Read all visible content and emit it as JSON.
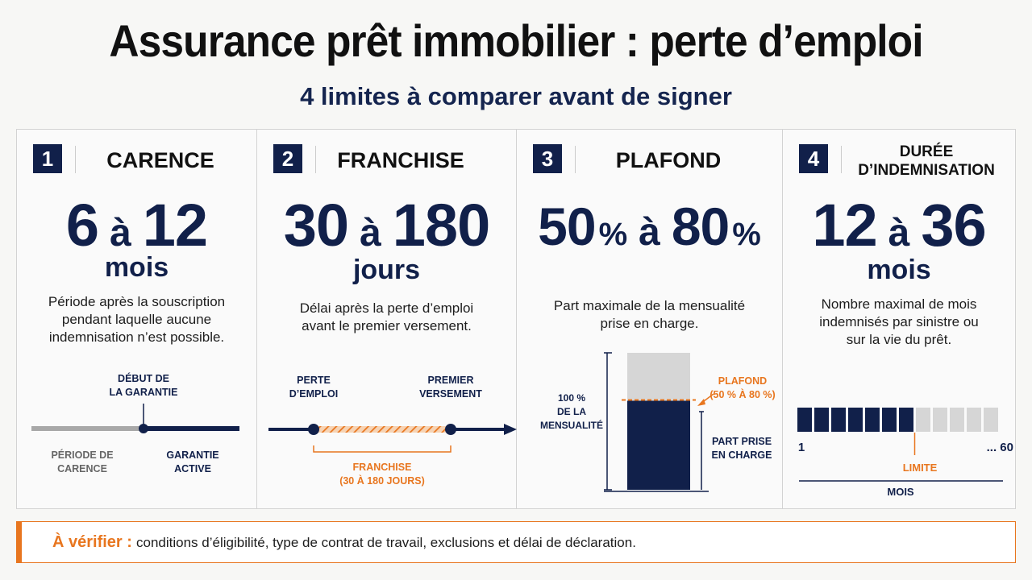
{
  "title": "Assurance prêt immobilier : perte d’emploi",
  "subtitle": "4 limites à comparer avant de signer",
  "colors": {
    "navy": "#11204a",
    "orange": "#e8761f",
    "grey": "#a8a8a8",
    "light_grey": "#d6d6d6"
  },
  "panels": [
    {
      "number": "1",
      "heading": "CARENCE",
      "value_min": "6",
      "connector": "à",
      "value_max": "12",
      "unit": "mois",
      "description": [
        "Période après la souscription",
        "pendant laquelle aucune",
        "indemnisation n’est possible."
      ],
      "diagram": {
        "marker_label": [
          "DÉBUT DE",
          "LA GARANTIE"
        ],
        "left_label": [
          "PÉRIODE DE",
          "CARENCE"
        ],
        "right_label": [
          "GARANTIE",
          "ACTIVE"
        ]
      }
    },
    {
      "number": "2",
      "heading": "FRANCHISE",
      "value_min": "30",
      "connector": "à",
      "value_max": "180",
      "unit": "jours",
      "description": [
        "Délai après la perte d’emploi",
        "avant le premier versement."
      ],
      "diagram": {
        "start_label": [
          "PERTE",
          "D’EMPLOI"
        ],
        "end_label": [
          "PREMIER",
          "VERSEMENT"
        ],
        "bracket_label": [
          "FRANCHISE",
          "(30 À 180 JOURS)"
        ]
      }
    },
    {
      "number": "3",
      "heading": "PLAFOND",
      "value_min": "50",
      "value_min_suffix": "%",
      "connector": "à",
      "value_max": "80",
      "value_max_suffix": "%",
      "description": [
        "Part maximale de la mensualité",
        "prise en charge."
      ],
      "diagram": {
        "total_label": [
          "100 %",
          "DE LA",
          "MENSUALITÉ"
        ],
        "cap_label": [
          "PLAFOND",
          "(50 % À 80 %)"
        ],
        "covered_label": [
          "PART PRISE",
          "EN CHARGE"
        ],
        "covered_fraction": 0.65
      }
    },
    {
      "number": "4",
      "heading": [
        "DURÉE",
        "D’INDEMNISATION"
      ],
      "value_min": "12",
      "connector": "à",
      "value_max": "36",
      "unit": "mois",
      "description": [
        "Nombre maximal de mois",
        "indemnisés par sinistre ou",
        "sur la vie du prêt."
      ],
      "diagram": {
        "start_label": "1",
        "end_label": "... 60",
        "limit_label": "LIMITE",
        "axis_label": "MOIS",
        "filled_blocks": 7,
        "total_blocks": 12
      }
    }
  ],
  "footer": {
    "label": "À vérifier :",
    "text": "conditions d’éligibilité, type de contrat de travail, exclusions et délai de déclaration."
  }
}
